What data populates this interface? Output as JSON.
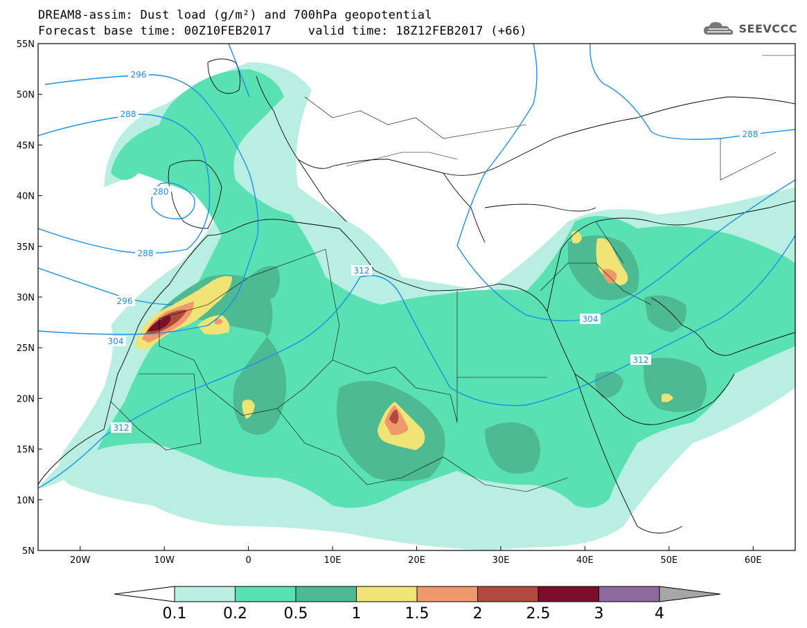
{
  "header": {
    "title_line1": "DREAM8-assim: Dust load (g/m²) and 700hPa geopotential",
    "title_line2": "Forecast base time: 00Z10FEB2017     valid time: 18Z12FEB2017 (+66)",
    "logo_text": "SEEVCCC"
  },
  "map": {
    "lon_range": [
      -25,
      65
    ],
    "lat_range": [
      5,
      55
    ],
    "lat_ticks": [
      "55N",
      "50N",
      "45N",
      "40N",
      "35N",
      "30N",
      "25N",
      "20N",
      "15N",
      "10N",
      "5N"
    ],
    "lon_ticks": [
      "20W",
      "10W",
      "0",
      "10E",
      "20E",
      "30E",
      "40E",
      "50E",
      "60E"
    ],
    "contour_labels": [
      "296",
      "288",
      "280",
      "288",
      "296",
      "304",
      "312",
      "304",
      "312",
      "312",
      "288"
    ],
    "colors": {
      "contour": "#1b8fe6",
      "coast": "#000000"
    }
  },
  "colorbar": {
    "labels": [
      "0.1",
      "0.2",
      "0.5",
      "1",
      "1.5",
      "2",
      "2.5",
      "3",
      "4"
    ],
    "colors": [
      "#ffffff",
      "#b8efe2",
      "#59e0b3",
      "#4dba91",
      "#f1e477",
      "#ef9a6a",
      "#b14a3e",
      "#7b0f2b",
      "#8c6a9c",
      "#a6a6a6"
    ]
  }
}
